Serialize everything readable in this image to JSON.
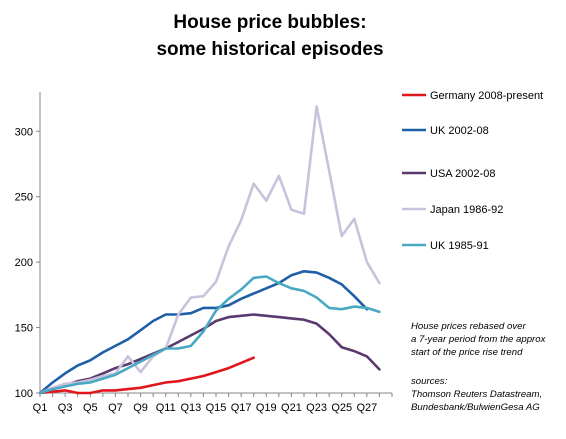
{
  "chart_data": {
    "type": "line",
    "title_lines": [
      "House price bubbles:",
      "some historical episodes"
    ],
    "xlabel": "",
    "ylabel": "",
    "ylim": [
      100,
      330
    ],
    "yticks": [
      100,
      150,
      200,
      250,
      300
    ],
    "x_count": 29,
    "xtick_labels": [
      "Q1",
      "Q3",
      "Q5",
      "Q7",
      "Q9",
      "Q11",
      "Q13",
      "Q15",
      "Q17",
      "Q19",
      "Q21",
      "Q23",
      "Q25",
      "Q27"
    ],
    "grid": "none",
    "legend_position": "right",
    "series": [
      {
        "name": "Germany 2008-present",
        "color": "#e0161c",
        "values": [
          100,
          101,
          102,
          100,
          100,
          102,
          102,
          103,
          104,
          106,
          108,
          109,
          111,
          113,
          116,
          119,
          123,
          127
        ]
      },
      {
        "name": "UK 2002-08",
        "color": "#1f5fa8",
        "values": [
          100,
          108,
          115,
          121,
          125,
          131,
          136,
          141,
          148,
          155,
          160,
          160,
          161,
          165,
          165,
          167,
          172,
          176,
          180,
          184,
          190,
          193,
          192,
          188,
          183,
          174,
          164
        ]
      },
      {
        "name": "USA 2002-08",
        "color": "#5a3a6e",
        "values": [
          100,
          103,
          106,
          109,
          111,
          115,
          119,
          122,
          126,
          130,
          134,
          139,
          144,
          149,
          155,
          158,
          159,
          160,
          159,
          158,
          157,
          156,
          153,
          145,
          135,
          132,
          128,
          118
        ]
      },
      {
        "name": "Japan 1986-92",
        "color": "#c8c2dc",
        "values": [
          100,
          104,
          107,
          108,
          110,
          113,
          115,
          128,
          116,
          128,
          134,
          160,
          173,
          174,
          185,
          212,
          232,
          260,
          247,
          266,
          240,
          237,
          319,
          270,
          220,
          233,
          200,
          184
        ]
      },
      {
        "name": "UK 1985-91",
        "color": "#49a9c4",
        "values": [
          100,
          103,
          105,
          107,
          108,
          111,
          114,
          119,
          124,
          129,
          134,
          134,
          136,
          147,
          163,
          172,
          179,
          188,
          189,
          184,
          180,
          178,
          173,
          165,
          164,
          166,
          165,
          162
        ]
      }
    ],
    "annotations": {
      "note_lines": [
        "House prices rebased over",
        "a 7-year period from the  approx",
        "start of the price rise trend"
      ],
      "source_lines": [
        "sources:",
        "Thomson Reuters Datastream,",
        "Bundesbank/BulwienGesa AG"
      ]
    }
  }
}
